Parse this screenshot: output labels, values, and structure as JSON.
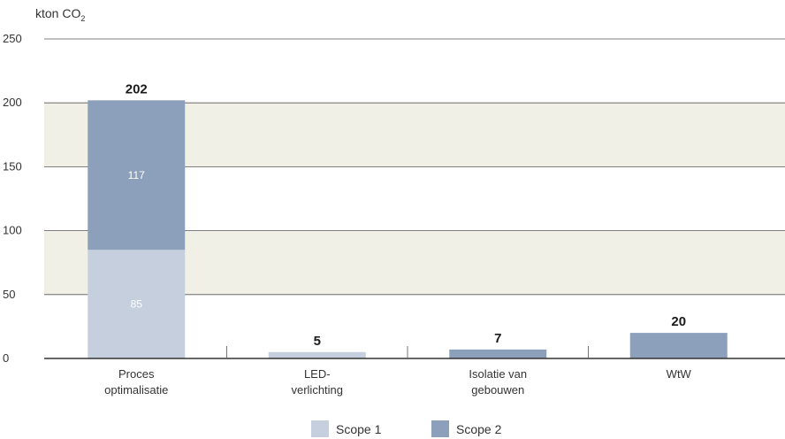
{
  "chart_data": {
    "type": "bar",
    "stacked": true,
    "unit_label": "kton CO",
    "unit_subscript": "2",
    "categories": [
      [
        "Proces",
        "optimalisatie"
      ],
      [
        "LED-",
        "verlichting"
      ],
      [
        "Isolatie van",
        "gebouwen"
      ],
      [
        "WtW"
      ]
    ],
    "series": [
      {
        "name": "Scope 1",
        "values": [
          85,
          5,
          0,
          0
        ],
        "color": "#c5cfdd"
      },
      {
        "name": "Scope 2",
        "values": [
          117,
          0,
          7,
          20
        ],
        "color": "#8c9fbb"
      }
    ],
    "segment_labels": [
      [
        "85",
        null,
        null,
        null
      ],
      [
        "117",
        null,
        null,
        null
      ]
    ],
    "totals": [
      "202",
      "5",
      "7",
      "20"
    ],
    "ylim": [
      0,
      250
    ],
    "yticks": [
      0,
      50,
      100,
      150,
      200,
      250
    ],
    "band_color": "#f1f0e6",
    "grid": true,
    "legend_position": "bottom-center"
  }
}
